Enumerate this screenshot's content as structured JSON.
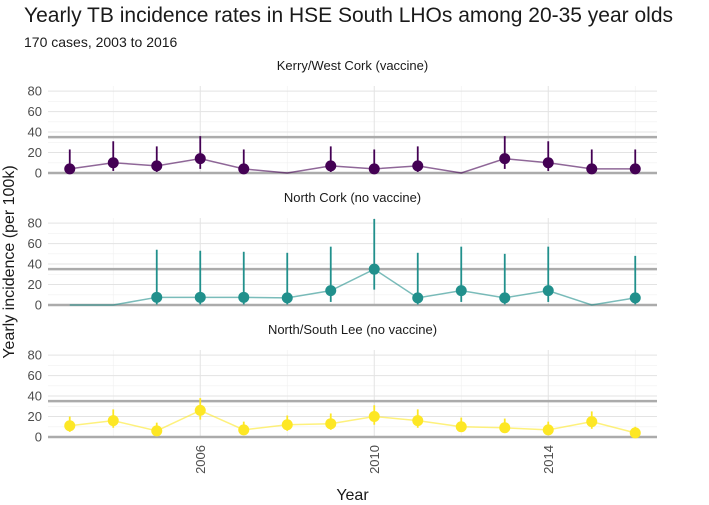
{
  "chart_data": {
    "type": "line",
    "title": "Yearly TB incidence rates in HSE South LHOs among 20-35 year olds",
    "subtitle": "170 cases, 2003 to 2016",
    "xlabel": "Year",
    "ylabel": "Yearly incidence (per 100k)",
    "x_ticks": [
      2006,
      2010,
      2014
    ],
    "y_ticks": [
      0,
      20,
      40,
      60,
      80
    ],
    "ylim": [
      0,
      85
    ],
    "xlim": [
      2002.5,
      2016.5
    ],
    "reference_line": 35,
    "panels": [
      {
        "name": "Kerry/West Cork (vaccine)",
        "color": "#440154",
        "points": [
          {
            "x": 2003,
            "y": 4,
            "lo": 0.5,
            "hi": 23
          },
          {
            "x": 2004,
            "y": 10,
            "lo": 2,
            "hi": 31
          },
          {
            "x": 2005,
            "y": 7,
            "lo": 1,
            "hi": 26
          },
          {
            "x": 2006,
            "y": 14,
            "lo": 4,
            "hi": 36
          },
          {
            "x": 2007,
            "y": 4,
            "lo": 0.5,
            "hi": 23
          },
          {
            "x": 2008,
            "y": 0,
            "lo": null,
            "hi": null
          },
          {
            "x": 2009,
            "y": 7,
            "lo": 1,
            "hi": 26
          },
          {
            "x": 2010,
            "y": 4,
            "lo": 0.5,
            "hi": 23
          },
          {
            "x": 2011,
            "y": 7,
            "lo": 1,
            "hi": 26
          },
          {
            "x": 2012,
            "y": 0,
            "lo": null,
            "hi": null
          },
          {
            "x": 2013,
            "y": 14,
            "lo": 4,
            "hi": 36
          },
          {
            "x": 2014,
            "y": 10,
            "lo": 2,
            "hi": 31
          },
          {
            "x": 2015,
            "y": 4,
            "lo": 0.5,
            "hi": 23
          },
          {
            "x": 2016,
            "y": 4,
            "lo": 0.5,
            "hi": 23
          }
        ]
      },
      {
        "name": "North Cork (no vaccine)",
        "color": "#21908C",
        "points": [
          {
            "x": 2003,
            "y": 0,
            "lo": null,
            "hi": null
          },
          {
            "x": 2004,
            "y": 0,
            "lo": null,
            "hi": null
          },
          {
            "x": 2005,
            "y": 7.5,
            "lo": 0.5,
            "hi": 54
          },
          {
            "x": 2006,
            "y": 7.5,
            "lo": 0.5,
            "hi": 53
          },
          {
            "x": 2007,
            "y": 7.5,
            "lo": 0.5,
            "hi": 52
          },
          {
            "x": 2008,
            "y": 7,
            "lo": 0.5,
            "hi": 51
          },
          {
            "x": 2009,
            "y": 14,
            "lo": 3,
            "hi": 57
          },
          {
            "x": 2010,
            "y": 35,
            "lo": 15,
            "hi": 84
          },
          {
            "x": 2011,
            "y": 7,
            "lo": 0.5,
            "hi": 51
          },
          {
            "x": 2012,
            "y": 14,
            "lo": 3,
            "hi": 57
          },
          {
            "x": 2013,
            "y": 7,
            "lo": 0.5,
            "hi": 50
          },
          {
            "x": 2014,
            "y": 14,
            "lo": 3,
            "hi": 57
          },
          {
            "x": 2015,
            "y": 0,
            "lo": null,
            "hi": null
          },
          {
            "x": 2016,
            "y": 7,
            "lo": 0.5,
            "hi": 48
          }
        ]
      },
      {
        "name": "North/South Lee (no vaccine)",
        "color": "#FDE725",
        "points": [
          {
            "x": 2003,
            "y": 11,
            "lo": 5,
            "hi": 20
          },
          {
            "x": 2004,
            "y": 16,
            "lo": 9,
            "hi": 27
          },
          {
            "x": 2005,
            "y": 6,
            "lo": 2,
            "hi": 14
          },
          {
            "x": 2006,
            "y": 26,
            "lo": 17,
            "hi": 38
          },
          {
            "x": 2007,
            "y": 7,
            "lo": 3,
            "hi": 15
          },
          {
            "x": 2008,
            "y": 12,
            "lo": 6,
            "hi": 21
          },
          {
            "x": 2009,
            "y": 13,
            "lo": 7,
            "hi": 23
          },
          {
            "x": 2010,
            "y": 20,
            "lo": 12,
            "hi": 31
          },
          {
            "x": 2011,
            "y": 16,
            "lo": 9,
            "hi": 27
          },
          {
            "x": 2012,
            "y": 10,
            "lo": 5,
            "hi": 19
          },
          {
            "x": 2013,
            "y": 9,
            "lo": 4,
            "hi": 18
          },
          {
            "x": 2014,
            "y": 7,
            "lo": 3,
            "hi": 15
          },
          {
            "x": 2015,
            "y": 15,
            "lo": 8,
            "hi": 25
          },
          {
            "x": 2016,
            "y": 4,
            "lo": 1,
            "hi": 10
          }
        ]
      }
    ]
  }
}
